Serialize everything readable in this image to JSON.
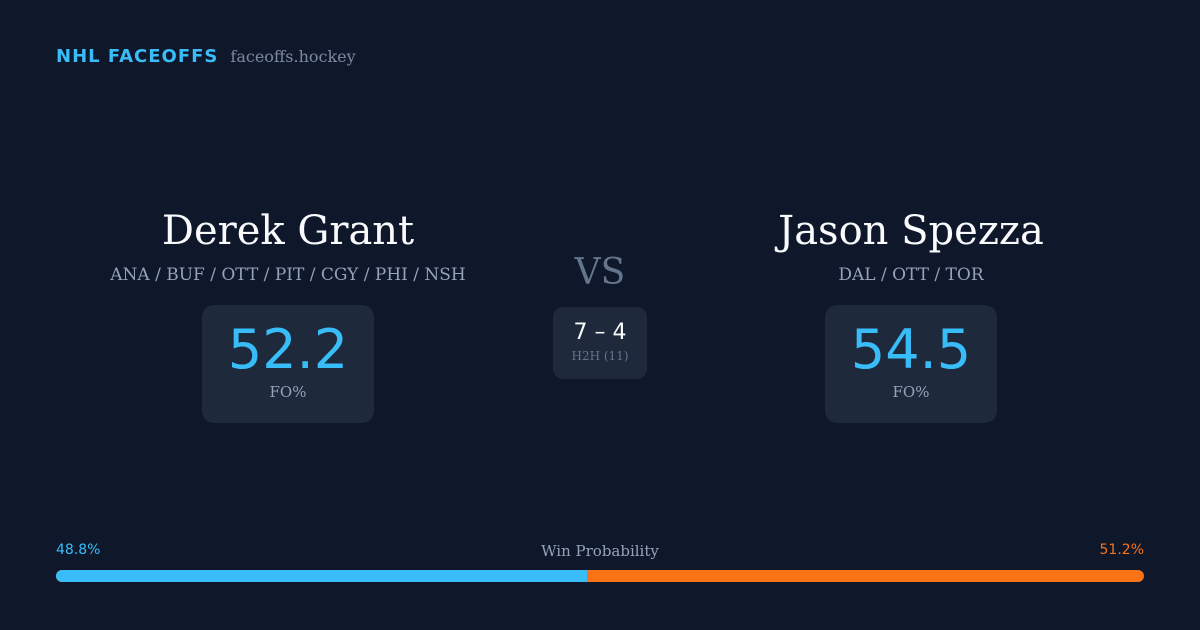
{
  "brand": {
    "name": "NHL FACEOFFS",
    "domain": "faceoffs.hockey"
  },
  "players": [
    {
      "name": "Derek Grant",
      "teams": "ANA / BUF / OTT / PIT / CGY / PHI / NSH",
      "fo_pct": "52.2",
      "fo_label": "FO%"
    },
    {
      "name": "Jason Spezza",
      "teams": "DAL / OTT / TOR",
      "fo_pct": "54.5",
      "fo_label": "FO%"
    }
  ],
  "versus": "VS",
  "h2h": {
    "score": "7 – 4",
    "label": "H2H (11)"
  },
  "win_probability": {
    "title": "Win Probability",
    "left_label": "48.8%",
    "right_label": "51.2%",
    "left_fraction": 0.488
  },
  "colors": {
    "background": "#0f172a",
    "card": "#1e293b",
    "accent_blue": "#38bdf8",
    "accent_orange": "#f97316"
  }
}
